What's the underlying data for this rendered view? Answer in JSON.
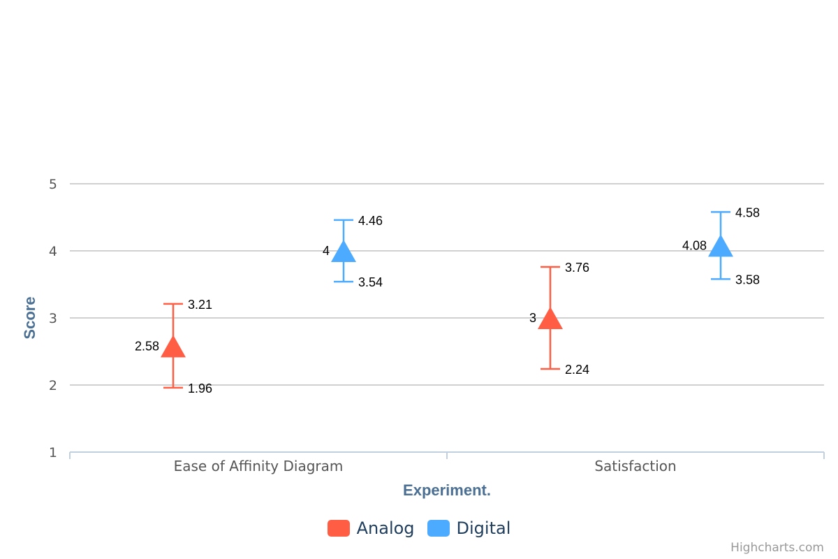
{
  "chart_data": {
    "type": "scatter",
    "categories": [
      "Ease of Affinity Diagram",
      "Satisfaction"
    ],
    "xlabel": "Experiment.",
    "ylabel": "Score",
    "ylim": [
      1,
      5
    ],
    "yticks": [
      1,
      2,
      3,
      4,
      5
    ],
    "grid": true,
    "legend_position": "bottom-center",
    "series": [
      {
        "name": "Analog",
        "color": "#ff5e45",
        "marker": "triangle",
        "values": [
          2.58,
          3
        ],
        "error_high": [
          3.21,
          3.76
        ],
        "error_low": [
          1.96,
          2.24
        ]
      },
      {
        "name": "Digital",
        "color": "#4dabff",
        "marker": "triangle",
        "values": [
          4,
          4.08
        ],
        "error_high": [
          4.46,
          4.58
        ],
        "error_low": [
          3.54,
          3.58
        ]
      }
    ]
  },
  "credits": "Highcharts.com"
}
